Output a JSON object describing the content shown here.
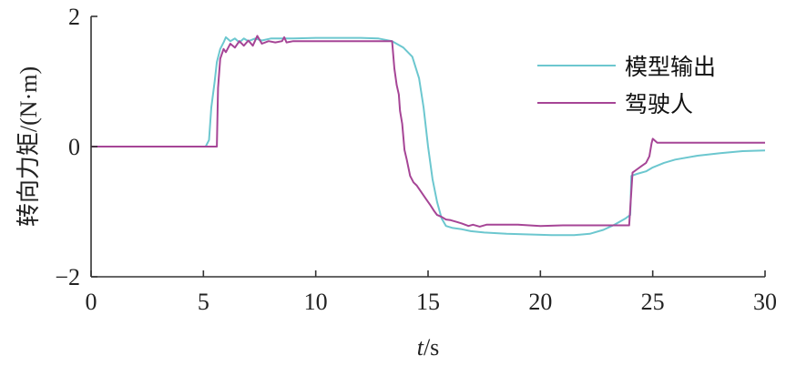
{
  "chart_data": {
    "type": "line",
    "xlabel_var": "t",
    "xlabel_unit": "/s",
    "ylabel": "转向力矩/(N·m)",
    "xlim": [
      0,
      30
    ],
    "ylim": [
      -2,
      2
    ],
    "xticks": [
      0,
      5,
      10,
      15,
      20,
      25,
      30
    ],
    "yticks": [
      -2,
      0,
      2
    ],
    "ytick_labels": [
      "−2",
      "0",
      "2"
    ],
    "grid": false,
    "legend_position": "top-right",
    "series": [
      {
        "name": "模型输出",
        "color": "#6cc7cf",
        "points": [
          [
            0,
            0
          ],
          [
            5.1,
            0
          ],
          [
            5.25,
            0.1
          ],
          [
            5.35,
            0.6
          ],
          [
            5.5,
            1.0
          ],
          [
            5.6,
            1.3
          ],
          [
            5.75,
            1.5
          ],
          [
            5.9,
            1.6
          ],
          [
            6.0,
            1.68
          ],
          [
            6.2,
            1.62
          ],
          [
            6.4,
            1.66
          ],
          [
            6.6,
            1.6
          ],
          [
            6.8,
            1.66
          ],
          [
            7.0,
            1.62
          ],
          [
            7.3,
            1.66
          ],
          [
            7.6,
            1.63
          ],
          [
            8.0,
            1.66
          ],
          [
            9.0,
            1.66
          ],
          [
            10.0,
            1.67
          ],
          [
            11.0,
            1.67
          ],
          [
            12.0,
            1.67
          ],
          [
            12.8,
            1.66
          ],
          [
            13.4,
            1.62
          ],
          [
            13.9,
            1.52
          ],
          [
            14.3,
            1.38
          ],
          [
            14.6,
            1.05
          ],
          [
            14.8,
            0.6
          ],
          [
            15.0,
            0.0
          ],
          [
            15.2,
            -0.5
          ],
          [
            15.4,
            -0.85
          ],
          [
            15.6,
            -1.1
          ],
          [
            15.8,
            -1.22
          ],
          [
            16.1,
            -1.25
          ],
          [
            16.5,
            -1.27
          ],
          [
            16.9,
            -1.3
          ],
          [
            17.5,
            -1.32
          ],
          [
            18.5,
            -1.34
          ],
          [
            19.5,
            -1.35
          ],
          [
            20.5,
            -1.36
          ],
          [
            21.5,
            -1.36
          ],
          [
            22.2,
            -1.34
          ],
          [
            22.8,
            -1.28
          ],
          [
            23.3,
            -1.2
          ],
          [
            23.8,
            -1.1
          ],
          [
            24.0,
            -1.05
          ],
          [
            24.05,
            -0.45
          ],
          [
            24.3,
            -0.42
          ],
          [
            24.7,
            -0.38
          ],
          [
            25.0,
            -0.32
          ],
          [
            25.5,
            -0.25
          ],
          [
            26.0,
            -0.2
          ],
          [
            27.0,
            -0.14
          ],
          [
            28.0,
            -0.1
          ],
          [
            29.0,
            -0.07
          ],
          [
            30.0,
            -0.06
          ]
        ]
      },
      {
        "name": "驾驶人",
        "color": "#a64596",
        "points": [
          [
            0,
            0
          ],
          [
            5.6,
            0
          ],
          [
            5.65,
            0.9
          ],
          [
            5.75,
            1.35
          ],
          [
            5.9,
            1.5
          ],
          [
            6.0,
            1.45
          ],
          [
            6.2,
            1.58
          ],
          [
            6.4,
            1.52
          ],
          [
            6.6,
            1.62
          ],
          [
            6.8,
            1.55
          ],
          [
            7.0,
            1.63
          ],
          [
            7.2,
            1.55
          ],
          [
            7.4,
            1.7
          ],
          [
            7.6,
            1.58
          ],
          [
            7.9,
            1.62
          ],
          [
            8.2,
            1.6
          ],
          [
            8.5,
            1.62
          ],
          [
            8.6,
            1.68
          ],
          [
            8.7,
            1.6
          ],
          [
            9.0,
            1.62
          ],
          [
            10,
            1.62
          ],
          [
            11,
            1.62
          ],
          [
            12,
            1.62
          ],
          [
            13,
            1.62
          ],
          [
            13.4,
            1.62
          ],
          [
            13.5,
            1.2
          ],
          [
            13.6,
            0.95
          ],
          [
            13.7,
            0.8
          ],
          [
            13.75,
            0.55
          ],
          [
            13.85,
            0.35
          ],
          [
            13.95,
            -0.05
          ],
          [
            14.05,
            -0.2
          ],
          [
            14.2,
            -0.45
          ],
          [
            14.35,
            -0.55
          ],
          [
            14.5,
            -0.6
          ],
          [
            14.7,
            -0.7
          ],
          [
            14.9,
            -0.8
          ],
          [
            15.1,
            -0.9
          ],
          [
            15.25,
            -0.98
          ],
          [
            15.4,
            -1.05
          ],
          [
            15.6,
            -1.08
          ],
          [
            15.8,
            -1.12
          ],
          [
            16.0,
            -1.13
          ],
          [
            16.3,
            -1.16
          ],
          [
            16.5,
            -1.18
          ],
          [
            16.8,
            -1.22
          ],
          [
            17.0,
            -1.2
          ],
          [
            17.3,
            -1.23
          ],
          [
            17.6,
            -1.2
          ],
          [
            18.0,
            -1.2
          ],
          [
            19.0,
            -1.2
          ],
          [
            20.0,
            -1.22
          ],
          [
            21.0,
            -1.21
          ],
          [
            22.0,
            -1.21
          ],
          [
            23.0,
            -1.21
          ],
          [
            23.95,
            -1.21
          ],
          [
            24.1,
            -0.4
          ],
          [
            24.3,
            -0.35
          ],
          [
            24.5,
            -0.3
          ],
          [
            24.7,
            -0.25
          ],
          [
            24.85,
            -0.15
          ],
          [
            24.95,
            0.05
          ],
          [
            25.0,
            0.12
          ],
          [
            25.2,
            0.06
          ],
          [
            26.0,
            0.06
          ],
          [
            27.0,
            0.06
          ],
          [
            28.0,
            0.06
          ],
          [
            29.0,
            0.06
          ],
          [
            30.0,
            0.06
          ]
        ]
      }
    ]
  }
}
